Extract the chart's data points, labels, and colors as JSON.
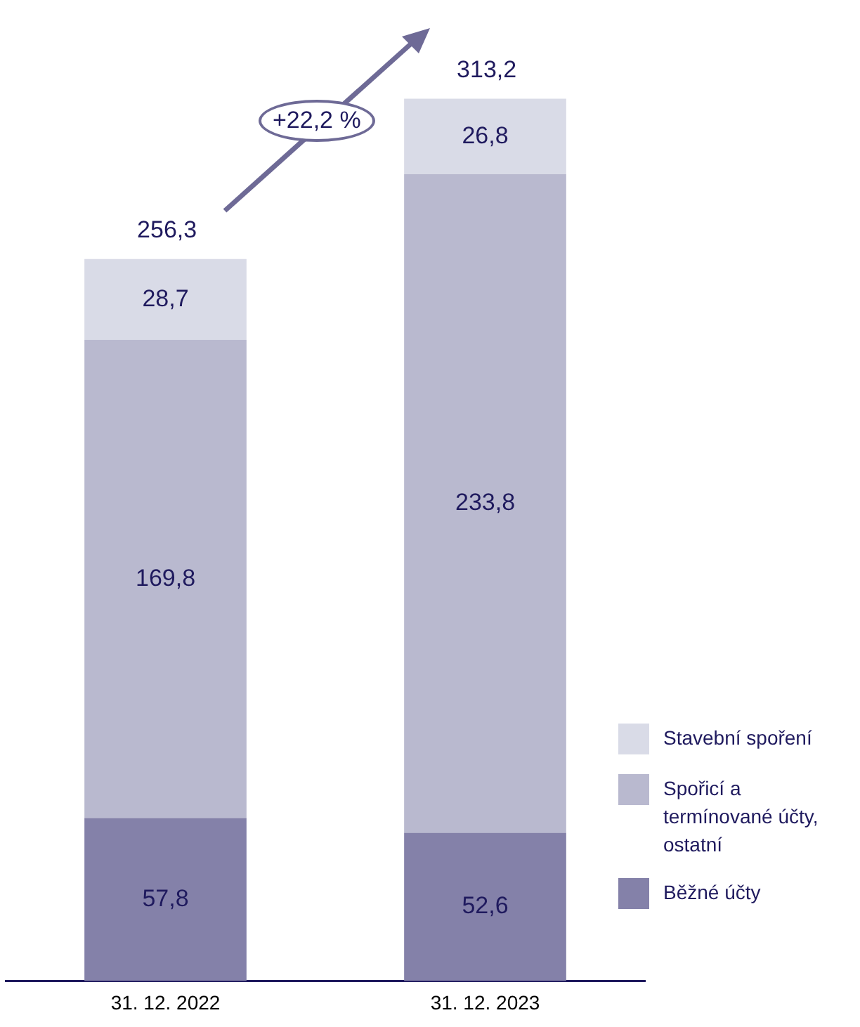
{
  "chart_data": {
    "type": "bar",
    "stacked": true,
    "categories": [
      "31. 12. 2022",
      "31. 12. 2023"
    ],
    "series": [
      {
        "name": "Běžné účty",
        "color": "#8481a9",
        "values": [
          57.8,
          52.6
        ],
        "value_labels": [
          "57,8",
          "52,6"
        ]
      },
      {
        "name": "Spořicí a termínované účty, ostatní",
        "color": "#b9b9cf",
        "values": [
          169.8,
          233.8
        ],
        "value_labels": [
          "169,8",
          "233,8"
        ]
      },
      {
        "name": "Stavební spoření",
        "color": "#d9dbe7",
        "values": [
          28.7,
          26.8
        ],
        "value_labels": [
          "28,7",
          "26,8"
        ]
      }
    ],
    "totals": [
      "256,3",
      "313,2"
    ],
    "annotations": [
      "+22,2 %"
    ],
    "legend": "bottom right",
    "grid": false
  }
}
